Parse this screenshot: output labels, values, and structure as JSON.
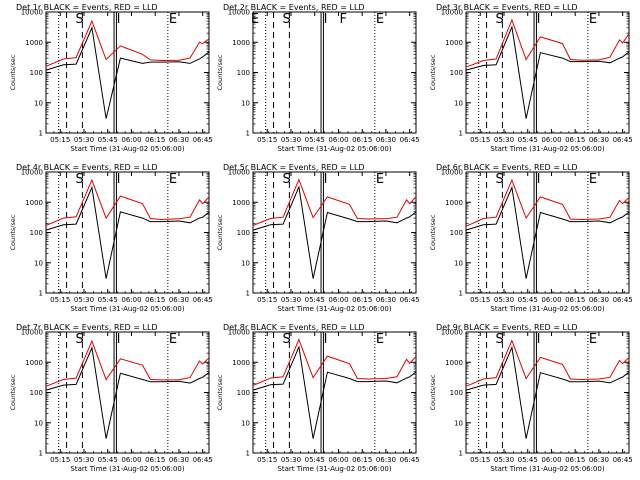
{
  "chart_data": {
    "type": "line",
    "yscale": "log",
    "ylim": [
      1,
      10000
    ],
    "ylabel": "Counts/sec",
    "xlabel": "Start Time (31-Aug-02 05:06:00)",
    "x_ticks": [
      "05:15",
      "05:30",
      "05:45",
      "06:00",
      "06:15",
      "06:30",
      "06:45"
    ],
    "y_ticks": [
      "1",
      "10",
      "100",
      "1000",
      "10000"
    ],
    "grid": false,
    "series_colors": {
      "events": "#000000",
      "lld": "#e00000"
    },
    "time_axis_min": [
      0,
      11,
      19,
      29,
      38,
      47,
      61,
      66,
      73,
      84,
      91,
      97,
      99,
      103
    ],
    "panels": [
      {
        "title": "Det 1r BLACK = Events, RED = LLD",
        "flags": [
          "S",
          "I",
          "E"
        ],
        "has_data": true,
        "lld": [
          160,
          280,
          310,
          5000,
          270,
          760,
          400,
          260,
          250,
          255,
          300,
          1000,
          900,
          1300
        ],
        "events": [
          120,
          180,
          190,
          3000,
          3,
          300,
          200,
          220,
          220,
          225,
          200,
          280,
          330,
          480
        ]
      },
      {
        "title": "Det 2r BLACK = Events, RED = LLD",
        "flags": [
          "E",
          "S",
          "I",
          "F",
          "E"
        ],
        "has_data": false,
        "lld": [],
        "events": []
      },
      {
        "title": "Det 3r BLACK = Events, RED = LLD",
        "flags": [
          "S",
          "I",
          "E"
        ],
        "has_data": true,
        "lld": [
          150,
          250,
          280,
          5500,
          270,
          1500,
          900,
          270,
          255,
          260,
          320,
          1200,
          950,
          1900
        ],
        "events": [
          120,
          170,
          180,
          3200,
          3,
          450,
          300,
          230,
          230,
          235,
          210,
          300,
          330,
          480
        ]
      },
      {
        "title": "Det 4r BLACK = Events, RED = LLD",
        "flags": [
          "S",
          "I",
          "E"
        ],
        "has_data": true,
        "lld": [
          170,
          300,
          330,
          5400,
          300,
          1600,
          900,
          290,
          270,
          285,
          320,
          1200,
          900,
          1500
        ],
        "events": [
          120,
          180,
          190,
          3100,
          3,
          480,
          300,
          230,
          230,
          240,
          210,
          300,
          320,
          470
        ]
      },
      {
        "title": "Det 5r BLACK = Events, RED = LLD",
        "flags": [
          "S",
          "I",
          "E"
        ],
        "has_data": true,
        "lld": [
          170,
          290,
          320,
          5600,
          310,
          1500,
          850,
          290,
          280,
          285,
          320,
          1200,
          900,
          1500
        ],
        "events": [
          120,
          180,
          190,
          3200,
          3,
          460,
          280,
          230,
          230,
          240,
          210,
          300,
          330,
          480
        ]
      },
      {
        "title": "Det 6r BLACK = Events, RED = LLD",
        "flags": [
          "S",
          "I",
          "E"
        ],
        "has_data": true,
        "lld": [
          160,
          290,
          320,
          5400,
          300,
          1500,
          850,
          280,
          270,
          280,
          320,
          1150,
          900,
          1450
        ],
        "events": [
          120,
          180,
          190,
          3100,
          3,
          460,
          280,
          230,
          230,
          240,
          210,
          300,
          330,
          470
        ]
      },
      {
        "title": "Det 7r BLACK = Events, RED = LLD",
        "flags": [
          "S",
          "I",
          "E"
        ],
        "has_data": true,
        "lld": [
          160,
          270,
          300,
          5000,
          270,
          1300,
          800,
          270,
          260,
          265,
          310,
          1100,
          880,
          1400
        ],
        "events": [
          120,
          175,
          185,
          3000,
          3,
          430,
          270,
          225,
          225,
          235,
          205,
          290,
          320,
          460
        ]
      },
      {
        "title": "Det 8r BLACK = Events, RED = LLD",
        "flags": [
          "S",
          "I",
          "E"
        ],
        "has_data": true,
        "lld": [
          170,
          300,
          330,
          5600,
          310,
          1600,
          900,
          290,
          280,
          290,
          330,
          1250,
          920,
          1550
        ],
        "events": [
          120,
          180,
          190,
          3200,
          3,
          470,
          290,
          230,
          230,
          240,
          210,
          300,
          330,
          480
        ]
      },
      {
        "title": "Det 9r BLACK = Events, RED = LLD",
        "flags": [
          "S",
          "I",
          "E"
        ],
        "has_data": true,
        "lld": [
          160,
          280,
          310,
          5200,
          290,
          1450,
          850,
          280,
          270,
          280,
          320,
          1150,
          900,
          1450
        ],
        "events": [
          120,
          175,
          185,
          3100,
          3,
          450,
          280,
          228,
          228,
          238,
          208,
          295,
          325,
          470
        ]
      }
    ]
  }
}
